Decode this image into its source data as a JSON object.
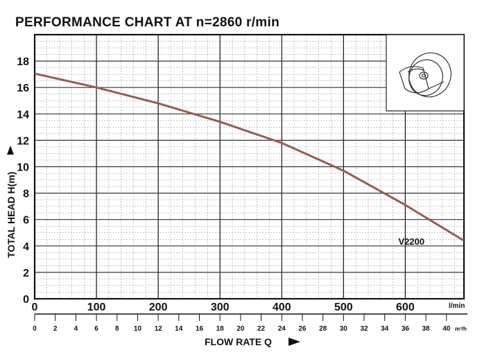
{
  "chart_data": {
    "type": "line",
    "title": "PERFORMANCE CHART AT n=2860 r/min",
    "xlabel": "FLOW RATE Q",
    "ylabel": "TOTAL HEAD H(m)",
    "x_unit": "l/min",
    "x2_unit": "m³/h",
    "xlim": [
      0,
      695
    ],
    "ylim": [
      0,
      20
    ],
    "x_ticks": [
      0,
      100,
      200,
      300,
      400,
      500,
      600
    ],
    "y_ticks": [
      0,
      2,
      4,
      6,
      8,
      10,
      12,
      14,
      16,
      18
    ],
    "x2_ticks": [
      0,
      2,
      4,
      6,
      8,
      10,
      12,
      14,
      16,
      18,
      20,
      22,
      24,
      26,
      28,
      30,
      32,
      34,
      36,
      38,
      40
    ],
    "grid": true,
    "series": [
      {
        "name": "V2200",
        "color": "#9a5a4e",
        "x": [
          0,
          100,
          200,
          300,
          400,
          500,
          600,
          695
        ],
        "y": [
          17.05,
          16.0,
          14.8,
          13.4,
          11.8,
          9.7,
          7.1,
          4.4
        ]
      }
    ]
  }
}
